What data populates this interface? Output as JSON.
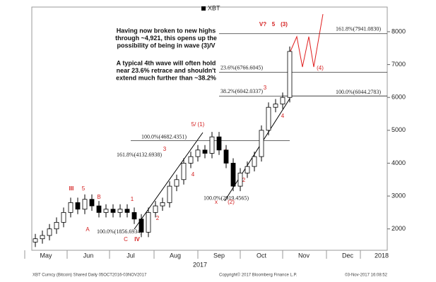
{
  "chart_data": {
    "type": "candlestick",
    "legend": "XBT",
    "months": [
      "May",
      "Jun",
      "Jul",
      "Aug",
      "Sep",
      "Oct",
      "Nov",
      "Dec",
      "2018"
    ],
    "year": "2017",
    "open": [
      1600,
      1700,
      1800,
      2000,
      2200,
      2500,
      2800,
      2600,
      2900,
      2700,
      2500,
      2600,
      2500,
      2600,
      2500,
      2300,
      1900,
      2500,
      2700,
      2800,
      3300,
      3500,
      4000,
      4200,
      4400,
      4300,
      4800,
      4400,
      4000,
      3300,
      3700,
      3900,
      4200,
      5000,
      5700,
      5800,
      6000
    ],
    "high": [
      1850,
      1950,
      2150,
      2350,
      2650,
      2950,
      2950,
      3050,
      3050,
      2850,
      2750,
      2750,
      2750,
      2750,
      2650,
      2450,
      2650,
      2850,
      2950,
      3450,
      3650,
      4150,
      4350,
      4550,
      4550,
      4950,
      4950,
      4550,
      4150,
      3850,
      4050,
      4350,
      5150,
      5850,
      5950,
      6150,
      7550
    ],
    "low": [
      1450,
      1550,
      1650,
      1850,
      2050,
      2350,
      2450,
      2450,
      2550,
      2350,
      2350,
      2350,
      2350,
      2350,
      2150,
      1750,
      1750,
      2350,
      2550,
      2650,
      3150,
      3350,
      3850,
      4050,
      4150,
      4150,
      4250,
      3850,
      3150,
      3150,
      3550,
      3750,
      4050,
      4850,
      5550,
      5650,
      5850
    ],
    "close": [
      1700,
      1800,
      2000,
      2200,
      2500,
      2800,
      2600,
      2900,
      2700,
      2500,
      2600,
      2500,
      2600,
      2500,
      2300,
      1900,
      2500,
      2700,
      2800,
      3300,
      3500,
      4000,
      4200,
      4400,
      4300,
      4800,
      4400,
      4000,
      3300,
      3700,
      3900,
      4200,
      5000,
      5700,
      5800,
      6000,
      7400
    ],
    "ylim": [
      1350,
      8750
    ],
    "yticks": [
      2000,
      3000,
      4000,
      5000,
      6000,
      7000,
      8000
    ],
    "levels": [
      {
        "label": "161.8%(7941.0830)",
        "value": 7941.083
      },
      {
        "label": "23.6%(6766.6045)",
        "value": 6766.6045
      },
      {
        "label": "38.2%(6042.0337)",
        "value": 6042.0337
      },
      {
        "label": "100.0%(6044.2783)",
        "value": 6044.2783
      },
      {
        "label": "100.0%(4682.4351)",
        "value": 4682.4351
      },
      {
        "label": "161.8%(4132.6938)",
        "value": 4132.6938
      },
      {
        "label": "100.0%(2919.4565)",
        "value": 2919.4565
      },
      {
        "label": "100.0%(1856.6934)",
        "value": 1856.6934
      }
    ],
    "wave_labels": [
      "V?",
      "5",
      "(3)",
      "(4)",
      "3",
      "4",
      "5/ (1)",
      "3",
      "4",
      "2",
      "x",
      "(2)",
      "1",
      "III",
      "5",
      "B",
      "A",
      "C",
      "IV",
      "1",
      "2"
    ],
    "notes": [
      [
        "Having now broken to new highs",
        "through ~4,921, this opens up the",
        "possibility of being in wave (3)/V"
      ],
      [
        "A typical 4th wave will often hold",
        "near 23.6% retrace and shouldn't",
        "extend much further than ~38.2%"
      ]
    ],
    "footer": [
      "XBT Curncy (Bitcoin) Shared Daily  05OCT2016-03NOV2017",
      "Copyright© 2017 Bloomberg Finance L.P.",
      "03-Nov-2017 16:08:52"
    ]
  }
}
